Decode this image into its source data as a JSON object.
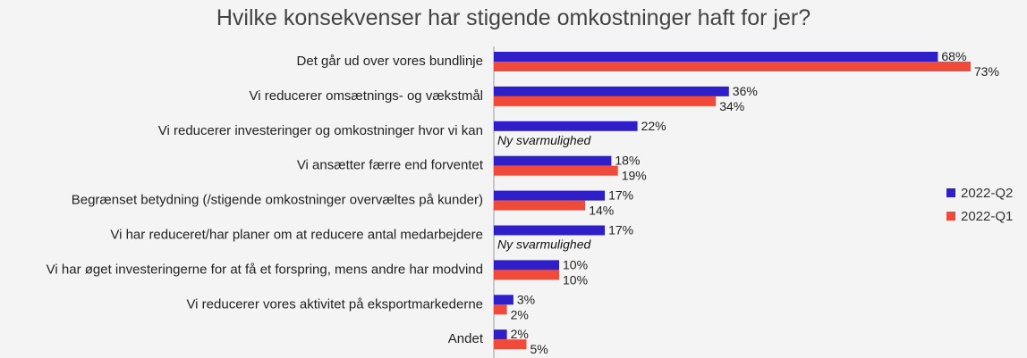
{
  "title": "Hvilke konsekvenser har stigende omkostninger haft for jer?",
  "colors": {
    "q2": "#2e1fc9",
    "q1": "#f04a3a",
    "text": "#222222",
    "axis": "#9a9a9a"
  },
  "legend": [
    {
      "label": "2022-Q2",
      "color": "#2e1fc9"
    },
    {
      "label": "2022-Q1",
      "color": "#f04a3a"
    }
  ],
  "chart_data": {
    "type": "bar",
    "orientation": "horizontal",
    "title": "Hvilke konsekvenser har stigende omkostninger haft for jer?",
    "categories": [
      "Det går ud over vores bundlinje",
      "Vi reducerer omsætnings- og vækstmål",
      "Vi reducerer investeringer og omkostninger hvor vi kan",
      "Vi ansætter færre end forventet",
      "Begrænset betydning (/stigende omkostninger overvæltes på kunder)",
      "Vi har reduceret/har planer om at reducere antal medarbejdere",
      "Vi har øget investeringerne for at få et forspring, mens andre har modvind",
      "Vi reducerer vores aktivitet på eksportmarkederne",
      "Andet"
    ],
    "series": [
      {
        "name": "2022-Q2",
        "values": [
          68,
          36,
          22,
          18,
          17,
          17,
          10,
          3,
          2
        ]
      },
      {
        "name": "2022-Q1",
        "values": [
          73,
          34,
          null,
          19,
          14,
          null,
          10,
          2,
          5
        ]
      }
    ],
    "value_suffix": "%",
    "annotations": [
      {
        "category_index": 2,
        "series": "2022-Q1",
        "text": "Ny svarmulighed"
      },
      {
        "category_index": 5,
        "series": "2022-Q1",
        "text": "Ny svarmulighed"
      }
    ],
    "xlim": [
      0,
      100
    ],
    "grid": false,
    "legend_position": "right"
  }
}
